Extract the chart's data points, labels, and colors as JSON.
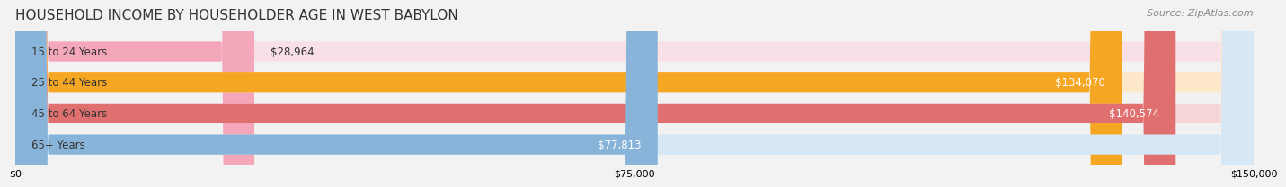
{
  "title": "HOUSEHOLD INCOME BY HOUSEHOLDER AGE IN WEST BABYLON",
  "source": "Source: ZipAtlas.com",
  "categories": [
    "15 to 24 Years",
    "25 to 44 Years",
    "45 to 64 Years",
    "65+ Years"
  ],
  "values": [
    28964,
    134070,
    140574,
    77813
  ],
  "bar_colors": [
    "#f4a7b9",
    "#f5a623",
    "#e07070",
    "#89b4d9"
  ],
  "bar_bg_colors": [
    "#f9e0e6",
    "#fde9c9",
    "#f5d5d5",
    "#d6e8f5"
  ],
  "label_colors": [
    "#555555",
    "#ffffff",
    "#ffffff",
    "#555555"
  ],
  "value_labels": [
    "$28,964",
    "$134,070",
    "$140,574",
    "$77,813"
  ],
  "xlim": [
    0,
    150000
  ],
  "xticks": [
    0,
    75000,
    150000
  ],
  "xtick_labels": [
    "$0",
    "$75,000",
    "$150,000"
  ],
  "background_color": "#f2f2f2",
  "title_fontsize": 11,
  "source_fontsize": 8,
  "label_fontsize": 8.5,
  "value_fontsize": 8.5
}
